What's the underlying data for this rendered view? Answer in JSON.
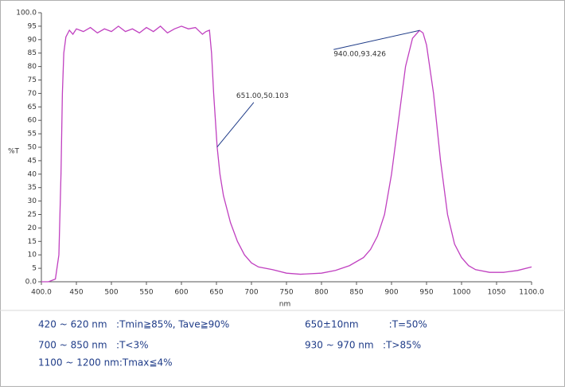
{
  "chart_data": {
    "type": "line",
    "ylabel": "%T",
    "xlabel": "nm",
    "xlim": [
      400,
      1100
    ],
    "ylim": [
      0,
      100
    ],
    "xticks": [
      {
        "value": 400,
        "label": "400.0"
      },
      450,
      500,
      550,
      600,
      650,
      700,
      750,
      800,
      850,
      900,
      950,
      1000,
      1050,
      {
        "value": 1100,
        "label": "1100.0"
      }
    ],
    "yticks": [
      {
        "value": 0,
        "label": "0.0"
      },
      5,
      10,
      15,
      20,
      25,
      30,
      35,
      40,
      45,
      50,
      55,
      60,
      65,
      70,
      75,
      80,
      85,
      90,
      95,
      {
        "value": 100,
        "label": "100.0"
      }
    ],
    "grid": false,
    "series": [
      {
        "color": "#c040c0",
        "x": [
          400,
          410,
          420,
          425,
          428,
          430,
          432,
          435,
          440,
          445,
          450,
          460,
          470,
          480,
          490,
          500,
          510,
          520,
          530,
          540,
          550,
          560,
          570,
          580,
          590,
          600,
          610,
          620,
          630,
          635,
          640,
          643,
          646,
          651,
          655,
          660,
          670,
          680,
          690,
          700,
          710,
          730,
          750,
          770,
          800,
          820,
          840,
          860,
          870,
          880,
          890,
          900,
          910,
          920,
          930,
          940,
          945,
          950,
          960,
          970,
          980,
          990,
          1000,
          1010,
          1020,
          1040,
          1060,
          1080,
          1100
        ],
        "values": [
          0,
          0,
          1,
          10,
          40,
          70,
          85,
          91,
          93.5,
          92,
          94,
          93,
          94.5,
          92.5,
          94,
          93,
          95,
          93,
          94,
          92.5,
          94.5,
          93,
          95,
          92.5,
          94,
          95,
          94,
          94.5,
          92,
          93,
          93.5,
          85,
          70,
          50.103,
          40,
          32,
          22,
          15,
          10,
          7,
          5.5,
          4.5,
          3.2,
          2.8,
          3.2,
          4.2,
          6,
          9,
          12,
          17,
          25,
          40,
          60,
          80,
          90.5,
          93.426,
          92.5,
          88,
          70,
          45,
          25,
          14,
          9,
          6,
          4.5,
          3.5,
          3.5,
          4.2,
          5.5
        ]
      }
    ],
    "annotations": [
      {
        "text": "651.00,50.103",
        "x": 651,
        "y": 50.103
      },
      {
        "text": "940.00,93.426",
        "x": 940,
        "y": 93.426
      }
    ]
  },
  "specs": [
    "420 ~ 620 nm   :Tmin≧85%, Tave≧90%",
    "650±10nm          :T=50%",
    "700 ~ 850 nm   :T<3%",
    "930 ~ 970 nm   :T>85%",
    "1100 ~ 1200 nm:Tmax≦4%"
  ]
}
